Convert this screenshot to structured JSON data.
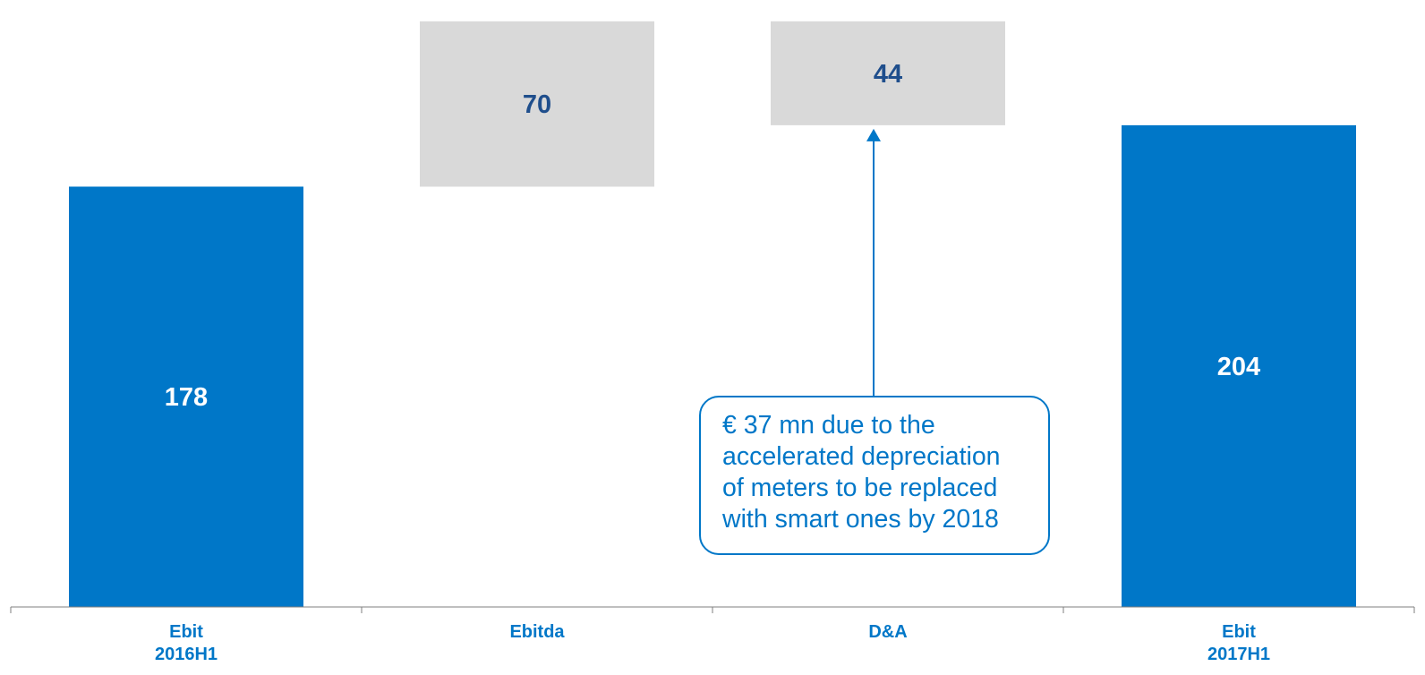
{
  "colors": {
    "total_bar": "#0077c8",
    "change_bar": "#d9d9d9",
    "total_value_text": "#ffffff",
    "change_value_text": "#1f4e8c",
    "category_text": "#0077c8",
    "axis": "#7f7f7f",
    "callout": "#0077c8"
  },
  "chart_data": {
    "type": "bar",
    "subtype": "waterfall",
    "title": "",
    "xlabel": "",
    "ylabel": "",
    "categories": [
      [
        "Ebit",
        "2016H1"
      ],
      [
        "Ebitda"
      ],
      [
        "D&A"
      ],
      [
        "Ebit",
        "2017H1"
      ]
    ],
    "values": [
      178,
      70,
      44,
      204
    ],
    "value_labels": [
      "178",
      "70",
      "44",
      "204"
    ],
    "bar_roles": [
      "total",
      "increase",
      "decrease",
      "total"
    ],
    "ylim": [
      0,
      254
    ],
    "grid": false,
    "legend": "none",
    "annotations": [
      {
        "target_category": "D&A",
        "text": "€ 37 mn due to the\naccelerated depreciation\nof meters to be replaced\nwith smart ones by 2018"
      }
    ]
  }
}
